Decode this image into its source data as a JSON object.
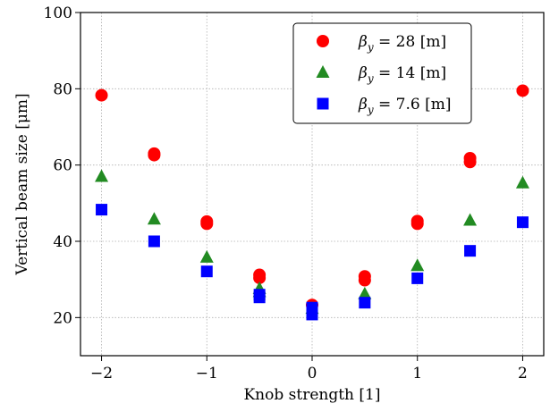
{
  "chart_data": {
    "type": "scatter",
    "xlabel": "Knob strength [1]",
    "ylabel": "Vertical beam size [μm]",
    "xlim": [
      -2.2,
      2.2
    ],
    "ylim": [
      10,
      100
    ],
    "xticks": [
      -2,
      -1,
      0,
      1,
      2
    ],
    "yticks": [
      20,
      40,
      60,
      80,
      100
    ],
    "x_tick_labels": [
      "−2",
      "−1",
      "0",
      "1",
      "2"
    ],
    "y_tick_labels": [
      "20",
      "40",
      "60",
      "80",
      "100"
    ],
    "grid": true,
    "legend_position": "top-right",
    "series": [
      {
        "name": "βy = 28 [m]",
        "legend": {
          "symbol": "β",
          "subscript": "y",
          "rest": " = 28 [m]"
        },
        "marker": "circle",
        "color": "#ff0000",
        "points": [
          [
            -2,
            78.3
          ],
          [
            -1.5,
            63.0
          ],
          [
            -1.5,
            62.6
          ],
          [
            -1,
            45.2
          ],
          [
            -1,
            44.6
          ],
          [
            -0.5,
            31.2
          ],
          [
            -0.5,
            30.4
          ],
          [
            0,
            23.3
          ],
          [
            0.5,
            30.8
          ],
          [
            0.5,
            29.8
          ],
          [
            1,
            45.3
          ],
          [
            1,
            44.6
          ],
          [
            1.5,
            61.8
          ],
          [
            1.5,
            60.8
          ],
          [
            2,
            79.5
          ]
        ]
      },
      {
        "name": "βy = 14 [m]",
        "legend": {
          "symbol": "β",
          "subscript": "y",
          "rest": " = 14 [m]"
        },
        "marker": "triangle",
        "color": "#228b22",
        "points": [
          [
            -2,
            57.0
          ],
          [
            -1.5,
            45.8
          ],
          [
            -1,
            35.8
          ],
          [
            -0.5,
            27.6
          ],
          [
            -0.5,
            26.8
          ],
          [
            0,
            22.4
          ],
          [
            0.5,
            26.2
          ],
          [
            1,
            33.6
          ],
          [
            1.5,
            45.5
          ],
          [
            2,
            55.3
          ]
        ]
      },
      {
        "name": "βy = 7.6 [m]",
        "legend": {
          "symbol": "β",
          "subscript": "y",
          "rest": " = 7.6 [m]"
        },
        "marker": "square",
        "color": "#0000ff",
        "points": [
          [
            -2,
            48.3
          ],
          [
            -1.5,
            40.0
          ],
          [
            -1,
            32.1
          ],
          [
            -0.5,
            26.0
          ],
          [
            -0.5,
            25.3
          ],
          [
            0,
            22.6
          ],
          [
            0,
            20.8
          ],
          [
            0.5,
            23.9
          ],
          [
            1,
            30.3
          ],
          [
            1.5,
            37.5
          ],
          [
            2,
            45.0
          ]
        ]
      }
    ]
  }
}
